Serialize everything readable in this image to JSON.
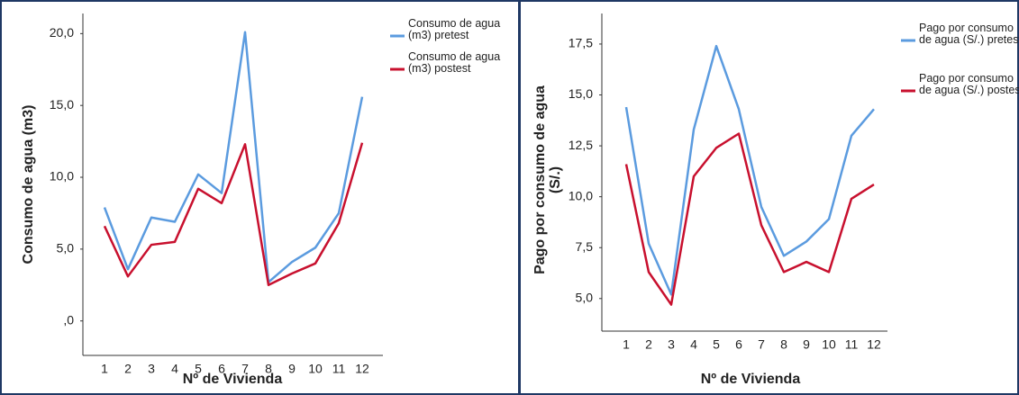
{
  "chart_data": [
    {
      "type": "line",
      "y_label": "Consumo de agua (m3)",
      "x_label": "Nº de Vivienda",
      "categories": [
        "1",
        "2",
        "3",
        "4",
        "5",
        "6",
        "7",
        "8",
        "9",
        "10",
        "11",
        "12"
      ],
      "series": [
        {
          "name": "Consumo de agua (m3) pretest",
          "color": "#5b9bdf",
          "values": [
            7.9,
            3.6,
            7.2,
            6.9,
            10.2,
            8.9,
            20.1,
            2.7,
            4.1,
            5.1,
            7.5,
            15.6
          ]
        },
        {
          "name": "Consumo de agua (m3) postest",
          "color": "#c8102e",
          "values": [
            6.6,
            3.1,
            5.3,
            5.5,
            9.2,
            8.2,
            12.3,
            2.5,
            3.3,
            4.0,
            6.8,
            12.4
          ]
        }
      ],
      "ylim": [
        -2.4,
        21.4
      ],
      "yticks": [
        {
          "value": 0,
          "label": ",0"
        },
        {
          "value": 5,
          "label": "5,0"
        },
        {
          "value": 10,
          "label": "10,0"
        },
        {
          "value": 15,
          "label": "15,0"
        },
        {
          "value": 20,
          "label": "20,0"
        }
      ],
      "grid": false
    },
    {
      "type": "line",
      "y_label": "Pago por consumo de agua (S/.)",
      "x_label": "Nº de Vivienda",
      "categories": [
        "1",
        "2",
        "3",
        "4",
        "5",
        "6",
        "7",
        "8",
        "9",
        "10",
        "11",
        "12"
      ],
      "series": [
        {
          "name": "Pago por consumo de agua (S/.) pretest",
          "color": "#5b9bdf",
          "values": [
            14.4,
            7.7,
            5.2,
            13.3,
            17.4,
            14.3,
            9.5,
            7.1,
            7.8,
            8.9,
            13.0,
            14.3
          ]
        },
        {
          "name": "Pago por consumo de agua (S/.) postest",
          "color": "#c8102e",
          "values": [
            11.6,
            6.3,
            4.7,
            11.0,
            12.4,
            13.1,
            8.6,
            6.3,
            6.8,
            6.3,
            9.9,
            10.6
          ]
        }
      ],
      "ylim": [
        3.4,
        19.0
      ],
      "yticks": [
        {
          "value": 5,
          "label": "5,0"
        },
        {
          "value": 7.5,
          "label": "7,5"
        },
        {
          "value": 10,
          "label": "10,0"
        },
        {
          "value": 12.5,
          "label": "12,5"
        },
        {
          "value": 15,
          "label": "15,0"
        },
        {
          "value": 17.5,
          "label": "17,5"
        }
      ],
      "grid": false
    }
  ]
}
